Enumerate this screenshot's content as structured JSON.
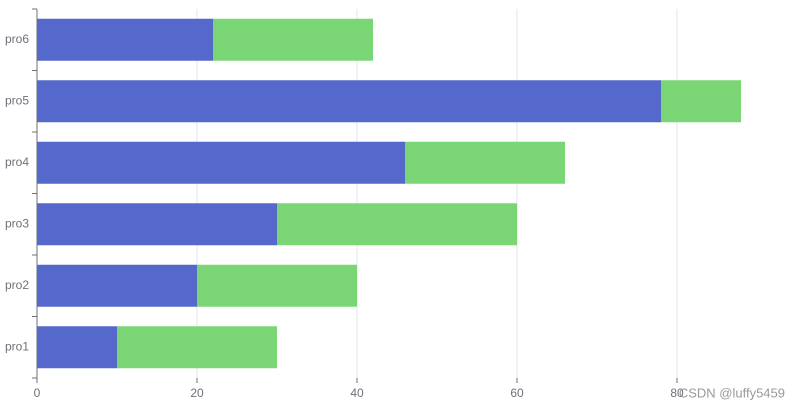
{
  "chart_data": {
    "type": "bar",
    "orientation": "horizontal",
    "stacked": true,
    "categories": [
      "pro1",
      "pro2",
      "pro3",
      "pro4",
      "pro5",
      "pro6"
    ],
    "series": [
      {
        "color": "#5568cc",
        "values": [
          10,
          20,
          30,
          46,
          78,
          22
        ]
      },
      {
        "color": "#7ad574",
        "values": [
          20,
          20,
          30,
          20,
          10,
          20
        ]
      }
    ],
    "xlim": [
      0,
      95
    ],
    "xticks": [
      0,
      20,
      40,
      60,
      80
    ],
    "grid": true,
    "watermark": "CSDN @luffy5459"
  }
}
